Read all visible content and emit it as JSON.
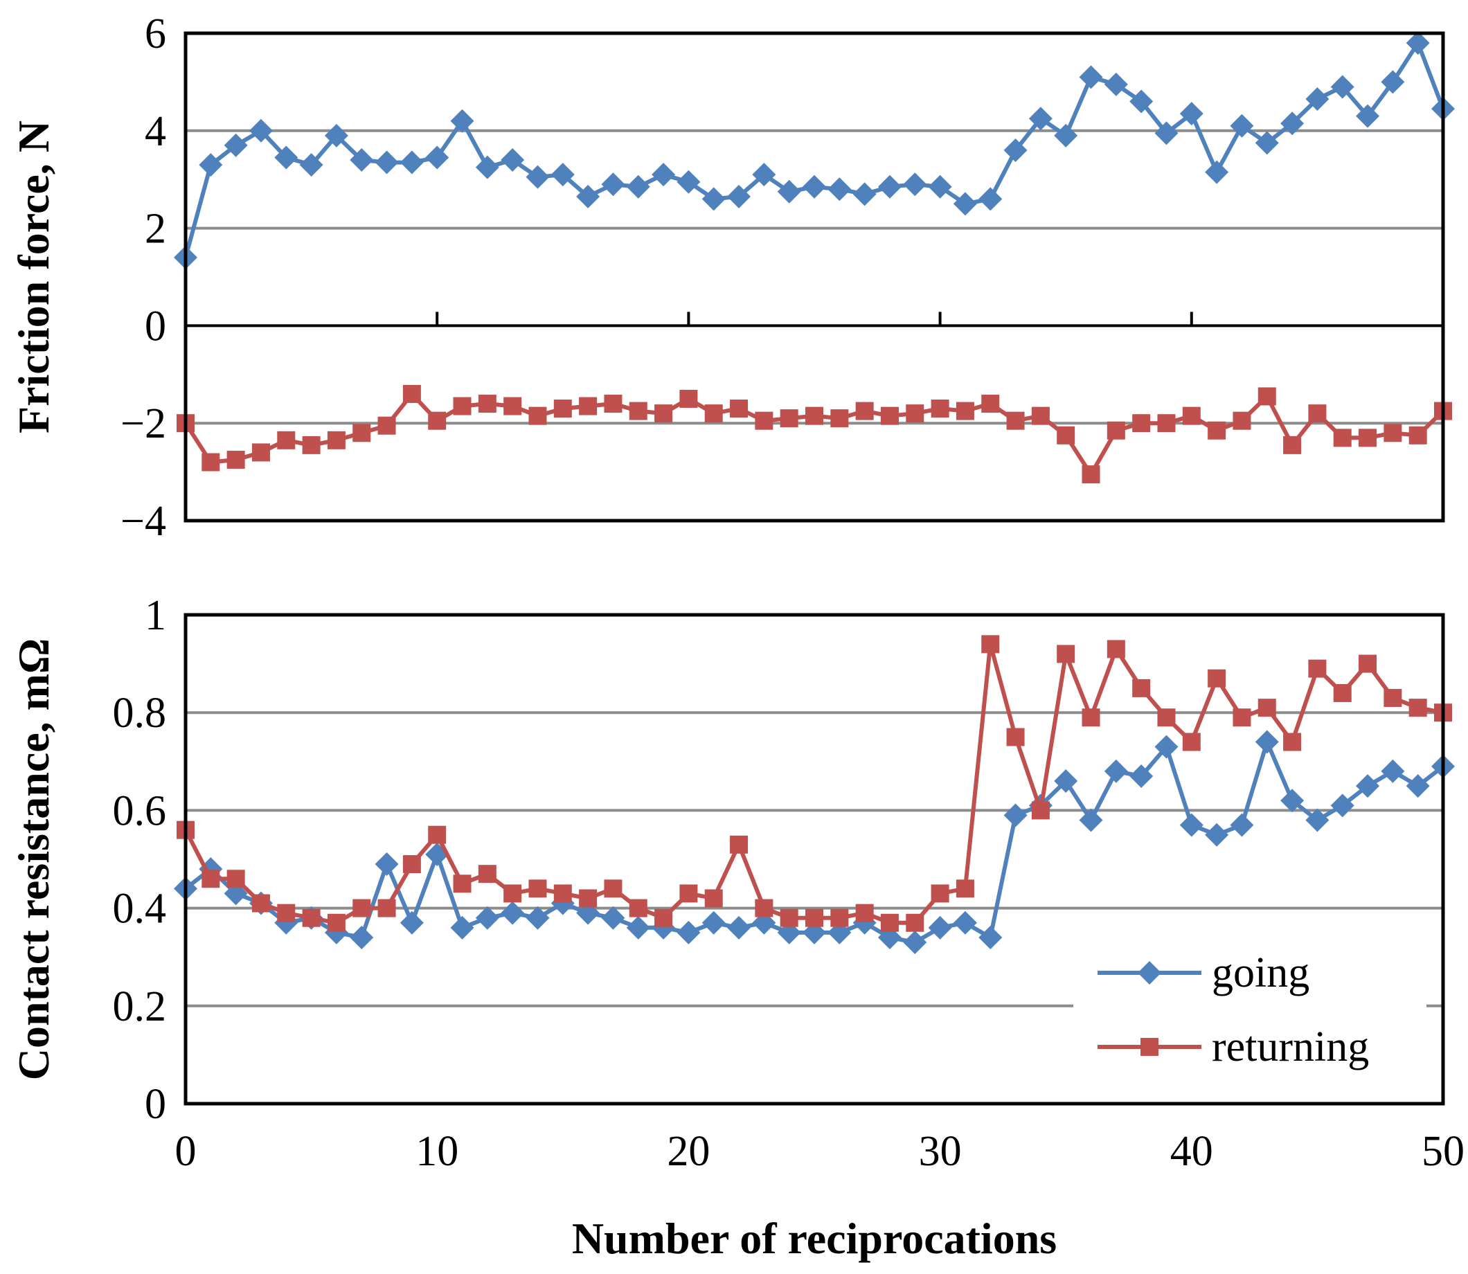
{
  "colors": {
    "going": "#4F81BD",
    "returning": "#C0504D",
    "grid": "#8C8C8C",
    "frame": "#000000"
  },
  "chart_data": [
    {
      "type": "line",
      "title": "",
      "ylabel": "Friction force, N",
      "xlabel": "",
      "xlim": [
        0,
        50
      ],
      "ylim": [
        -4,
        6
      ],
      "yticks": [
        6,
        4,
        2,
        0,
        -2,
        -4
      ],
      "ytick_labels": [
        "6",
        "4",
        "2",
        "0",
        "−2",
        "−4"
      ],
      "grid": true,
      "x": [
        0,
        1,
        2,
        3,
        4,
        5,
        6,
        7,
        8,
        9,
        10,
        11,
        12,
        13,
        14,
        15,
        16,
        17,
        18,
        19,
        20,
        21,
        22,
        23,
        24,
        25,
        26,
        27,
        28,
        29,
        30,
        31,
        32,
        33,
        34,
        35,
        36,
        37,
        38,
        39,
        40,
        41,
        42,
        43,
        44,
        45,
        46,
        47,
        48,
        49,
        50
      ],
      "series": [
        {
          "name": "going",
          "marker": "diamond",
          "values": [
            1.4,
            3.3,
            3.7,
            4.0,
            3.45,
            3.3,
            3.9,
            3.4,
            3.35,
            3.35,
            3.45,
            4.2,
            3.25,
            3.4,
            3.05,
            3.1,
            2.65,
            2.9,
            2.85,
            3.1,
            2.95,
            2.6,
            2.65,
            3.1,
            2.75,
            2.85,
            2.8,
            2.7,
            2.85,
            2.9,
            2.85,
            2.5,
            2.6,
            3.6,
            4.25,
            3.9,
            5.1,
            4.95,
            4.6,
            3.95,
            4.35,
            3.15,
            4.1,
            3.75,
            4.15,
            4.65,
            4.9,
            4.3,
            5.0,
            5.8,
            4.45
          ]
        },
        {
          "name": "returning",
          "marker": "square",
          "values": [
            -2.0,
            -2.8,
            -2.75,
            -2.6,
            -2.35,
            -2.45,
            -2.35,
            -2.2,
            -2.05,
            -1.4,
            -1.95,
            -1.65,
            -1.6,
            -1.65,
            -1.85,
            -1.7,
            -1.65,
            -1.6,
            -1.75,
            -1.8,
            -1.5,
            -1.8,
            -1.7,
            -1.95,
            -1.9,
            -1.85,
            -1.9,
            -1.75,
            -1.85,
            -1.8,
            -1.7,
            -1.75,
            -1.6,
            -1.95,
            -1.85,
            -2.25,
            -3.05,
            -2.15,
            -2.0,
            -2.0,
            -1.85,
            -2.15,
            -1.95,
            -1.45,
            -2.45,
            -1.8,
            -2.3,
            -2.3,
            -2.2,
            -2.25,
            -1.75
          ]
        }
      ]
    },
    {
      "type": "line",
      "title": "",
      "ylabel": "Contact resistance, mΩ",
      "xlabel": "Number of reciprocations",
      "xlim": [
        0,
        50
      ],
      "ylim": [
        0,
        1
      ],
      "yticks": [
        1,
        0.8,
        0.6,
        0.4,
        0.2,
        0
      ],
      "ytick_labels": [
        "1",
        "0.8",
        "0.6",
        "0.4",
        "0.2",
        "0"
      ],
      "xticks": [
        0,
        10,
        20,
        30,
        40,
        50
      ],
      "xtick_labels": [
        "0",
        "10",
        "20",
        "30",
        "40",
        "50"
      ],
      "grid": true,
      "legend": {
        "position": "bottom-right",
        "entries": [
          "going",
          "returning"
        ]
      },
      "x": [
        0,
        1,
        2,
        3,
        4,
        5,
        6,
        7,
        8,
        9,
        10,
        11,
        12,
        13,
        14,
        15,
        16,
        17,
        18,
        19,
        20,
        21,
        22,
        23,
        24,
        25,
        26,
        27,
        28,
        29,
        30,
        31,
        32,
        33,
        34,
        35,
        36,
        37,
        38,
        39,
        40,
        41,
        42,
        43,
        44,
        45,
        46,
        47,
        48,
        49,
        50
      ],
      "series": [
        {
          "name": "going",
          "marker": "diamond",
          "values": [
            0.44,
            0.48,
            0.43,
            0.41,
            0.37,
            0.38,
            0.35,
            0.34,
            0.49,
            0.37,
            0.51,
            0.36,
            0.38,
            0.39,
            0.38,
            0.41,
            0.39,
            0.38,
            0.36,
            0.36,
            0.35,
            0.37,
            0.36,
            0.37,
            0.35,
            0.35,
            0.35,
            0.37,
            0.34,
            0.33,
            0.36,
            0.37,
            0.34,
            0.59,
            0.61,
            0.66,
            0.58,
            0.68,
            0.67,
            0.73,
            0.57,
            0.55,
            0.57,
            0.74,
            0.62,
            0.58,
            0.61,
            0.65,
            0.68,
            0.65,
            0.69
          ]
        },
        {
          "name": "returning",
          "marker": "square",
          "values": [
            0.56,
            0.46,
            0.46,
            0.41,
            0.39,
            0.38,
            0.37,
            0.4,
            0.4,
            0.49,
            0.55,
            0.45,
            0.47,
            0.43,
            0.44,
            0.43,
            0.42,
            0.44,
            0.4,
            0.38,
            0.43,
            0.42,
            0.53,
            0.4,
            0.38,
            0.38,
            0.38,
            0.39,
            0.37,
            0.37,
            0.43,
            0.44,
            0.94,
            0.75,
            0.6,
            0.92,
            0.79,
            0.93,
            0.85,
            0.79,
            0.74,
            0.87,
            0.79,
            0.81,
            0.74,
            0.89,
            0.84,
            0.9,
            0.83,
            0.81,
            0.8
          ]
        }
      ]
    }
  ]
}
